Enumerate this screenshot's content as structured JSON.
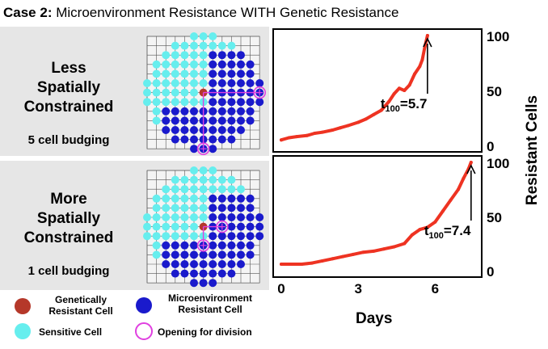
{
  "figure": {
    "title_prefix": "Case 2:",
    "title_rest": "Microenvironment Resistance WITH Genetic Resistance",
    "y_axis_label": "Resistant Cells",
    "x_axis_label": "Days"
  },
  "panels": [
    {
      "label_line1": "Less",
      "label_line2": "Spatially",
      "label_line3": "Constrained",
      "budging": "5 cell budging"
    },
    {
      "label_line1": "More",
      "label_line2": "Spatially",
      "label_line3": "Constrained",
      "budging": "1 cell budging"
    }
  ],
  "legend": {
    "genetic": "Genetically Resistant Cell",
    "genetic_l1": "Genetically",
    "genetic_l2": "Resistant Cell",
    "micro": "Microenvironment Resistant Cell",
    "micro_l1": "Microenvironment",
    "micro_l2": "Resistant Cell",
    "sensitive": "Sensitive Cell",
    "opening": "Opening for division"
  },
  "colors": {
    "sensitive": "#66eeee",
    "micro": "#1a1acc",
    "genetic": "#b5382a",
    "opening": "#e040e0",
    "curve": "#ee3322"
  },
  "chart_data": [
    {
      "type": "line",
      "title": "Less Spatially Constrained",
      "xlabel": "Days",
      "ylabel": "Resistant Cells",
      "xlim": [
        0,
        7.5
      ],
      "ylim": [
        0,
        100
      ],
      "y_ticks": [
        "0",
        "50",
        "100"
      ],
      "x_ticks": [],
      "annotation": "=5.7",
      "annotation_sub": "100",
      "annotation_prefix": "t",
      "t100": 5.7,
      "x": [
        0,
        0.3,
        0.6,
        1.0,
        1.3,
        1.6,
        2.0,
        2.3,
        2.6,
        3.0,
        3.3,
        3.6,
        3.9,
        4.2,
        4.4,
        4.6,
        4.8,
        5.0,
        5.2,
        5.4,
        5.5,
        5.6,
        5.7
      ],
      "values": [
        5,
        7,
        8,
        9,
        11,
        12,
        14,
        16,
        18,
        21,
        24,
        28,
        32,
        40,
        47,
        52,
        50,
        55,
        65,
        72,
        78,
        90,
        100
      ]
    },
    {
      "type": "line",
      "title": "More Spatially Constrained",
      "xlabel": "Days",
      "ylabel": "Resistant Cells",
      "xlim": [
        0,
        7.5
      ],
      "ylim": [
        0,
        100
      ],
      "y_ticks": [
        "0",
        "50",
        "100"
      ],
      "x_ticks": [
        "0",
        "3",
        "6"
      ],
      "annotation": "=7.4",
      "annotation_sub": "100",
      "annotation_prefix": "t",
      "t100": 7.4,
      "x": [
        0,
        0.4,
        0.8,
        1.2,
        1.6,
        2.0,
        2.4,
        2.8,
        3.2,
        3.6,
        4.0,
        4.4,
        4.8,
        5.1,
        5.4,
        5.7,
        6.0,
        6.3,
        6.6,
        6.9,
        7.1,
        7.3,
        7.4
      ],
      "values": [
        6,
        6,
        6,
        7,
        9,
        11,
        13,
        15,
        17,
        18,
        20,
        22,
        25,
        33,
        38,
        40,
        45,
        55,
        65,
        75,
        85,
        94,
        100
      ]
    }
  ]
}
